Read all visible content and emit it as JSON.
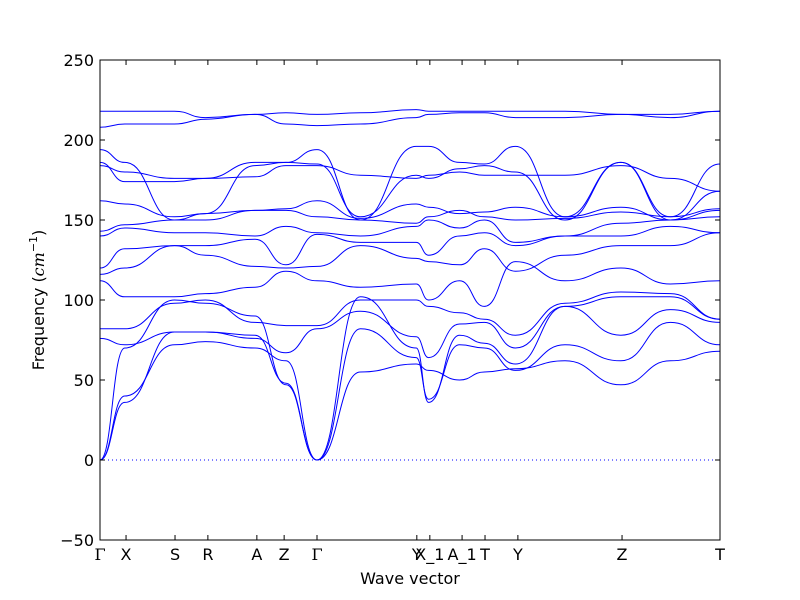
{
  "chart_data": {
    "type": "line",
    "title": "",
    "xlabel": "Wave vector",
    "ylabel_text": "Frequency (",
    "ylabel_unit": "cm",
    "ylabel_exp": "−1",
    "ylabel_close": ")",
    "ylabel": "Frequency (cm^-1)",
    "ylim": [
      -50,
      250
    ],
    "yticks": [
      -50,
      0,
      50,
      100,
      150,
      200,
      250
    ],
    "ytick_labels": [
      "−50",
      "0",
      "50",
      "100",
      "150",
      "200",
      "250"
    ],
    "xlim": [
      0,
      1
    ],
    "line_color": "#0000ff",
    "zero_line_color": "#0000ff",
    "high_symmetry_points": [
      {
        "label": "Γ",
        "x": 0.0
      },
      {
        "label": "X",
        "x": 0.042
      },
      {
        "label": "S",
        "x": 0.121
      },
      {
        "label": "R",
        "x": 0.174
      },
      {
        "label": "A",
        "x": 0.253
      },
      {
        "label": "Z",
        "x": 0.297
      },
      {
        "label": "Γ",
        "x": 0.35
      },
      {
        "label": "Y",
        "x": 0.511
      },
      {
        "label": "X_1",
        "x": 0.532
      },
      {
        "label": "A_1",
        "x": 0.584
      },
      {
        "label": "T",
        "x": 0.621
      },
      {
        "label": "Y",
        "x": 0.674
      },
      {
        "label": "Z",
        "x": 0.842
      },
      {
        "label": "T",
        "x": 1.0
      }
    ],
    "series": [
      {
        "x": [
          0,
          0.04,
          0.12,
          0.17,
          0.25,
          0.3,
          0.35,
          0.42,
          0.51,
          0.53,
          0.58,
          0.62,
          0.67,
          0.75,
          0.84,
          0.92,
          1
        ],
        "y": [
          0,
          40,
          72,
          74,
          70,
          62,
          0,
          55,
          60,
          56,
          50,
          55,
          57,
          62,
          47,
          62,
          68
        ]
      },
      {
        "x": [
          0,
          0.04,
          0.12,
          0.17,
          0.25,
          0.3,
          0.35,
          0.42,
          0.51,
          0.53,
          0.58,
          0.62,
          0.67,
          0.75,
          0.84,
          0.92,
          1
        ],
        "y": [
          0,
          36,
          80,
          80,
          78,
          48,
          0,
          82,
          64,
          38,
          72,
          70,
          56,
          72,
          62,
          86,
          72
        ]
      },
      {
        "x": [
          0,
          0.04,
          0.12,
          0.17,
          0.25,
          0.3,
          0.35,
          0.42,
          0.51,
          0.53,
          0.58,
          0.62,
          0.67,
          0.75,
          0.84,
          0.92,
          1
        ],
        "y": [
          0,
          70,
          100,
          98,
          90,
          47,
          0,
          102,
          70,
          36,
          78,
          73,
          60,
          96,
          78,
          94,
          86
        ]
      },
      {
        "x": [
          0,
          0.04,
          0.12,
          0.17,
          0.25,
          0.3,
          0.35,
          0.42,
          0.51,
          0.53,
          0.58,
          0.62,
          0.67,
          0.75,
          0.84,
          0.92,
          1
        ],
        "y": [
          76,
          72,
          80,
          80,
          76,
          67,
          82,
          93,
          77,
          64,
          85,
          86,
          70,
          96,
          102,
          102,
          88
        ]
      },
      {
        "x": [
          0,
          0.04,
          0.12,
          0.17,
          0.25,
          0.3,
          0.35,
          0.42,
          0.51,
          0.53,
          0.58,
          0.62,
          0.67,
          0.75,
          0.84,
          0.92,
          1
        ],
        "y": [
          82,
          82,
          98,
          100,
          86,
          84,
          84,
          100,
          100,
          96,
          92,
          88,
          78,
          98,
          105,
          104,
          88
        ]
      },
      {
        "x": [
          0,
          0.04,
          0.12,
          0.17,
          0.25,
          0.3,
          0.35,
          0.42,
          0.51,
          0.53,
          0.58,
          0.62,
          0.67,
          0.75,
          0.84,
          0.92,
          1
        ],
        "y": [
          112,
          102,
          102,
          104,
          108,
          118,
          112,
          108,
          110,
          100,
          112,
          96,
          124,
          112,
          120,
          110,
          112
        ]
      },
      {
        "x": [
          0,
          0.04,
          0.12,
          0.17,
          0.25,
          0.3,
          0.35,
          0.42,
          0.51,
          0.53,
          0.58,
          0.62,
          0.67,
          0.75,
          0.84,
          0.92,
          1
        ],
        "y": [
          116,
          120,
          134,
          128,
          121,
          120,
          121,
          134,
          126,
          124,
          122,
          132,
          118,
          128,
          134,
          134,
          142
        ]
      },
      {
        "x": [
          0,
          0.04,
          0.12,
          0.17,
          0.25,
          0.3,
          0.35,
          0.42,
          0.51,
          0.53,
          0.58,
          0.62,
          0.67,
          0.75,
          0.84,
          0.92,
          1
        ],
        "y": [
          120,
          132,
          134,
          134,
          138,
          122,
          141,
          136,
          136,
          128,
          140,
          142,
          134,
          140,
          140,
          146,
          142
        ]
      },
      {
        "x": [
          0,
          0.04,
          0.12,
          0.17,
          0.25,
          0.3,
          0.35,
          0.42,
          0.51,
          0.53,
          0.58,
          0.62,
          0.67,
          0.75,
          0.84,
          0.92,
          1
        ],
        "y": [
          140,
          145,
          142,
          142,
          140,
          146,
          142,
          140,
          146,
          150,
          145,
          150,
          136,
          140,
          148,
          150,
          152
        ]
      },
      {
        "x": [
          0,
          0.04,
          0.12,
          0.17,
          0.25,
          0.3,
          0.35,
          0.42,
          0.51,
          0.53,
          0.58,
          0.62,
          0.67,
          0.75,
          0.84,
          0.92,
          1
        ],
        "y": [
          143,
          147,
          150,
          150,
          156,
          156,
          152,
          150,
          148,
          152,
          156,
          152,
          150,
          151,
          155,
          152,
          157
        ]
      },
      {
        "x": [
          0,
          0.04,
          0.12,
          0.17,
          0.25,
          0.3,
          0.35,
          0.42,
          0.51,
          0.53,
          0.58,
          0.62,
          0.67,
          0.75,
          0.84,
          0.92,
          1
        ],
        "y": [
          162,
          160,
          152,
          154,
          156,
          157,
          162,
          151,
          160,
          158,
          154,
          155,
          158,
          152,
          158,
          150,
          156
        ]
      },
      {
        "x": [
          0,
          0.04,
          0.12,
          0.17,
          0.25,
          0.3,
          0.35,
          0.42,
          0.51,
          0.53,
          0.58,
          0.62,
          0.67,
          0.75,
          0.84,
          0.92,
          1
        ],
        "y": [
          184,
          180,
          176,
          176,
          177,
          184,
          184,
          178,
          176,
          178,
          180,
          178,
          178,
          178,
          184,
          176,
          168
        ]
      },
      {
        "x": [
          0,
          0.04,
          0.12,
          0.17,
          0.25,
          0.3,
          0.35,
          0.42,
          0.51,
          0.53,
          0.58,
          0.62,
          0.67,
          0.75,
          0.84,
          0.92,
          1
        ],
        "y": [
          186,
          174,
          174,
          176,
          186,
          186,
          185,
          152,
          178,
          176,
          182,
          184,
          180,
          150,
          186,
          152,
          185
        ]
      },
      {
        "x": [
          0,
          0.04,
          0.12,
          0.17,
          0.25,
          0.3,
          0.35,
          0.42,
          0.51,
          0.53,
          0.58,
          0.62,
          0.67,
          0.75,
          0.84,
          0.92,
          1
        ],
        "y": [
          194,
          186,
          150,
          154,
          184,
          186,
          194,
          150,
          196,
          196,
          186,
          185,
          196,
          152,
          186,
          150,
          168
        ]
      },
      {
        "x": [
          0,
          0.04,
          0.12,
          0.17,
          0.25,
          0.3,
          0.35,
          0.42,
          0.51,
          0.53,
          0.58,
          0.62,
          0.67,
          0.75,
          0.84,
          0.92,
          1
        ],
        "y": [
          208,
          210,
          210,
          213,
          216,
          210,
          209,
          210,
          214,
          216,
          217,
          217,
          214,
          214,
          216,
          214,
          218
        ]
      },
      {
        "x": [
          0,
          0.04,
          0.12,
          0.17,
          0.25,
          0.3,
          0.35,
          0.42,
          0.51,
          0.53,
          0.58,
          0.62,
          0.67,
          0.75,
          0.84,
          0.92,
          1
        ],
        "y": [
          218,
          218,
          218,
          214,
          216,
          217,
          216,
          217,
          219,
          218,
          218,
          218,
          218,
          218,
          216,
          216,
          218
        ]
      }
    ]
  }
}
